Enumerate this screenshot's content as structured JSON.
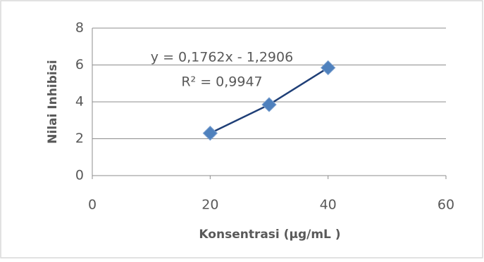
{
  "chart_data": {
    "type": "scatter",
    "x_label": "Konsentrasi (µg/mL )",
    "y_label": "Nilai Inhibisi",
    "series": [
      {
        "name": "Nilai Inhibisi",
        "color": "#4f81bd",
        "line_color": "#1f3f77",
        "x": [
          20,
          30,
          40
        ],
        "values": [
          2.3,
          3.85,
          5.85
        ]
      }
    ],
    "trendline": {
      "equation": "y = 0,1762x - 1,2906",
      "r_squared": "R² = 0,9947"
    },
    "xlim": [
      0,
      60
    ],
    "xticks": [
      0,
      20,
      40,
      60
    ],
    "ylim": [
      0,
      8
    ],
    "yticks": [
      0,
      2,
      4,
      6,
      8
    ],
    "grid": true
  }
}
